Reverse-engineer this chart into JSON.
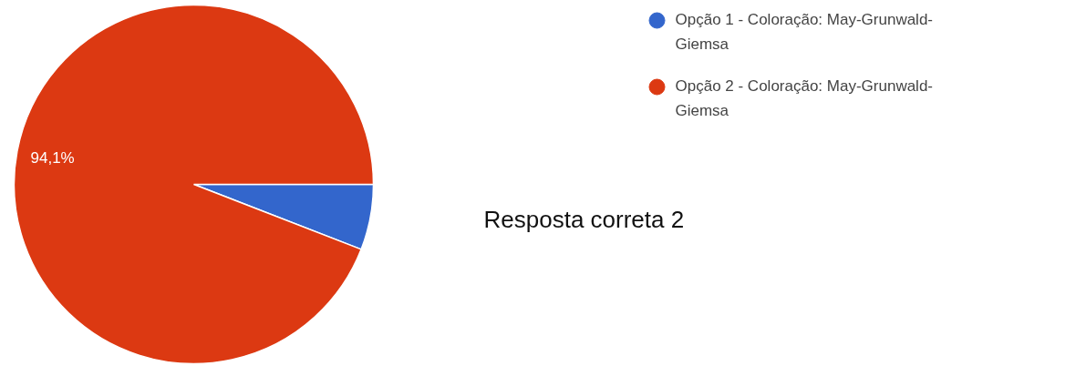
{
  "chart_data": {
    "type": "pie",
    "categories": [
      "Opção 1 - Coloração: May-Grunwald-Giemsa",
      "Opção 2 - Coloração: May-Grunwald-Giemsa"
    ],
    "values": [
      5.9,
      94.1
    ],
    "colors": [
      "#3366cc",
      "#dc3912"
    ],
    "value_labels": [
      null,
      "94,1%"
    ],
    "legend": "top right",
    "annotations": [
      "Resposta correta 2"
    ]
  }
}
